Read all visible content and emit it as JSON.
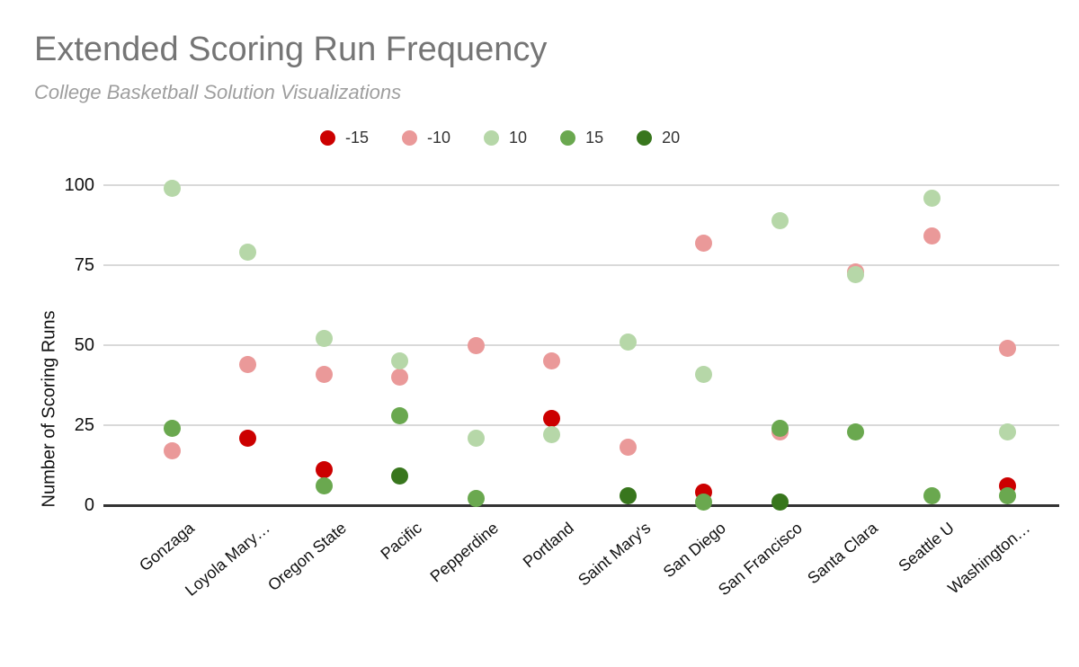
{
  "header": {
    "title": "Extended Scoring Run Frequency",
    "subtitle": "College Basketball Solution Visualizations"
  },
  "chart_data": {
    "type": "scatter",
    "title": "Extended Scoring Run Frequency",
    "subtitle": "College Basketball Solution Visualizations",
    "xlabel": "",
    "ylabel": "Number of Scoring Runs",
    "ylim": [
      0,
      100
    ],
    "yticks": [
      0,
      25,
      50,
      75,
      100
    ],
    "grid": true,
    "legend_position": "top",
    "categories": [
      "Gonzaga",
      "Loyola Mary…",
      "Oregon State",
      "Pacific",
      "Pepperdine",
      "Portland",
      "Saint Mary's",
      "San Diego",
      "San Francisco",
      "Santa Clara",
      "Seattle U",
      "Washington…"
    ],
    "series": [
      {
        "name": "-15",
        "color": "#cc0000",
        "values": [
          null,
          21,
          11,
          null,
          null,
          27,
          null,
          4,
          null,
          null,
          null,
          6
        ]
      },
      {
        "name": "-10",
        "color": "#ea9999",
        "values": [
          17,
          44,
          41,
          40,
          50,
          45,
          18,
          82,
          23,
          73,
          84,
          49
        ]
      },
      {
        "name": "10",
        "color": "#b6d7a8",
        "values": [
          99,
          79,
          52,
          45,
          21,
          22,
          51,
          41,
          89,
          72,
          96,
          23
        ]
      },
      {
        "name": "15",
        "color": "#6aa84f",
        "values": [
          24,
          null,
          6,
          28,
          2,
          null,
          null,
          1,
          24,
          23,
          3,
          3
        ]
      },
      {
        "name": "20",
        "color": "#38761d",
        "values": [
          null,
          null,
          null,
          9,
          null,
          null,
          3,
          null,
          1,
          null,
          null,
          null
        ]
      }
    ]
  }
}
